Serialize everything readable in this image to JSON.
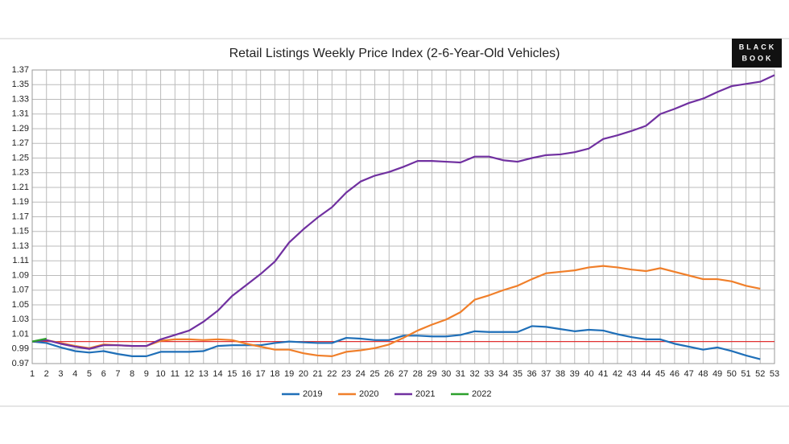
{
  "chart_data": {
    "type": "line",
    "title": "Retail Listings Weekly Price Index (2-6-Year-Old Vehicles)",
    "logo": [
      "BLACK",
      "BOOK"
    ],
    "categories": [
      "1",
      "2",
      "3",
      "4",
      "5",
      "6",
      "7",
      "8",
      "9",
      "10",
      "11",
      "12",
      "13",
      "14",
      "15",
      "16",
      "17",
      "18",
      "19",
      "20",
      "21",
      "22",
      "23",
      "24",
      "25",
      "26",
      "27",
      "28",
      "29",
      "30",
      "31",
      "32",
      "33",
      "34",
      "35",
      "36",
      "37",
      "38",
      "39",
      "40",
      "41",
      "42",
      "43",
      "44",
      "45",
      "46",
      "47",
      "48",
      "49",
      "50",
      "51",
      "52",
      "53"
    ],
    "series": [
      {
        "name": "2019",
        "color": "#1f6fb8",
        "values": [
          1.0,
          0.998,
          0.992,
          0.987,
          0.985,
          0.987,
          0.983,
          0.98,
          0.98,
          0.986,
          0.986,
          0.986,
          0.987,
          0.994,
          0.995,
          0.995,
          0.995,
          0.998,
          1.0,
          0.999,
          0.998,
          0.998,
          1.005,
          1.004,
          1.002,
          1.002,
          1.008,
          1.008,
          1.007,
          1.007,
          1.009,
          1.014,
          1.013,
          1.013,
          1.013,
          1.021,
          1.02,
          1.017,
          1.014,
          1.016,
          1.015,
          1.01,
          1.006,
          1.003,
          1.003,
          0.997,
          0.993,
          0.989,
          0.992,
          0.987,
          0.981,
          0.976,
          null
        ]
      },
      {
        "name": "2020",
        "color": "#f07f2a",
        "values": [
          1.0,
          1.002,
          0.998,
          0.994,
          0.991,
          0.996,
          0.995,
          0.994,
          0.994,
          1.001,
          1.003,
          1.003,
          1.002,
          1.003,
          1.002,
          0.997,
          0.993,
          0.989,
          0.989,
          0.984,
          0.981,
          0.98,
          0.986,
          0.988,
          0.991,
          0.996,
          1.005,
          1.015,
          1.023,
          1.03,
          1.04,
          1.057,
          1.063,
          1.07,
          1.076,
          1.085,
          1.093,
          1.095,
          1.097,
          1.101,
          1.103,
          1.101,
          1.098,
          1.096,
          1.1,
          1.095,
          1.09,
          1.085,
          1.085,
          1.082,
          1.076,
          1.072,
          null
        ]
      },
      {
        "name": "2021",
        "color": "#7030a0",
        "values": [
          1.0,
          1.002,
          0.997,
          0.993,
          0.99,
          0.995,
          0.995,
          0.994,
          0.994,
          1.003,
          1.009,
          1.015,
          1.027,
          1.042,
          1.062,
          1.077,
          1.092,
          1.109,
          1.135,
          1.153,
          1.169,
          1.183,
          1.203,
          1.218,
          1.226,
          1.231,
          1.238,
          1.246,
          1.246,
          1.245,
          1.244,
          1.252,
          1.252,
          1.247,
          1.245,
          1.25,
          1.254,
          1.255,
          1.258,
          1.263,
          1.276,
          1.281,
          1.287,
          1.294,
          1.31,
          1.317,
          1.325,
          1.331,
          1.34,
          1.348,
          1.351,
          1.354,
          1.363
        ]
      },
      {
        "name": "2022",
        "color": "#2ca02c",
        "values": [
          1.0,
          1.004,
          null,
          null,
          null,
          null,
          null,
          null,
          null,
          null,
          null,
          null,
          null,
          null,
          null,
          null,
          null,
          null,
          null,
          null,
          null,
          null,
          null,
          null,
          null,
          null,
          null,
          null,
          null,
          null,
          null,
          null,
          null,
          null,
          null,
          null,
          null,
          null,
          null,
          null,
          null,
          null,
          null,
          null,
          null,
          null,
          null,
          null,
          null,
          null,
          null,
          null,
          null
        ]
      }
    ],
    "ylim": [
      0.97,
      1.37
    ],
    "yticks": [
      0.97,
      0.99,
      1.01,
      1.03,
      1.05,
      1.07,
      1.09,
      1.11,
      1.13,
      1.15,
      1.17,
      1.19,
      1.21,
      1.23,
      1.25,
      1.27,
      1.29,
      1.31,
      1.33,
      1.35,
      1.37
    ],
    "reference_line": {
      "value": 1.0,
      "color": "#e03030"
    },
    "grid": true,
    "legend": "bottom"
  }
}
